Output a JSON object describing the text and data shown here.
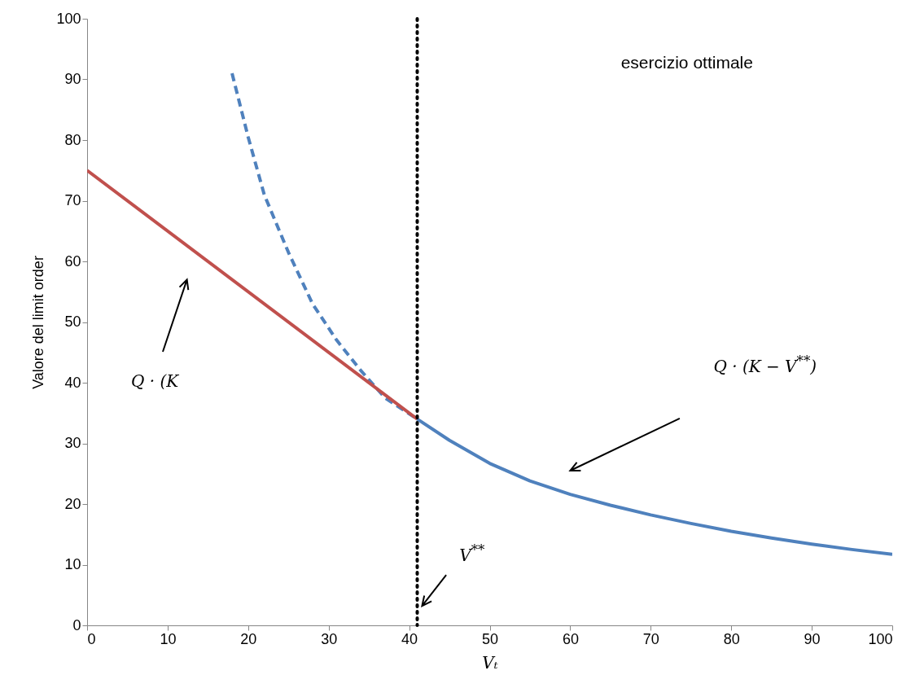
{
  "chart_data": {
    "type": "line",
    "xlabel": "Vₜ",
    "ylabel": "Valore del limit order",
    "xlim": [
      0,
      100
    ],
    "xticks": [
      0,
      10,
      20,
      30,
      40,
      50,
      60,
      70,
      80,
      90,
      100
    ],
    "ylim": [
      0,
      100
    ],
    "yticks": [
      0,
      10,
      20,
      30,
      40,
      50,
      60,
      70,
      80,
      90,
      100
    ],
    "grid": false,
    "series": [
      {
        "color": "#4f81bd",
        "line_style": "dashed",
        "x": [
          18,
          20,
          22,
          25,
          28,
          31,
          34,
          37,
          41
        ],
        "values": [
          91,
          80.5,
          71,
          61.5,
          53,
          47,
          42,
          37.5,
          34
        ]
      },
      {
        "color": "#c0504d",
        "line_style": "solid",
        "x": [
          0,
          41
        ],
        "values": [
          75,
          34
        ]
      },
      {
        "color": "#4f81bd",
        "line_style": "solid",
        "x": [
          41,
          45,
          50,
          55,
          60,
          65,
          70,
          75,
          80,
          85,
          90,
          95,
          100
        ],
        "values": [
          34,
          30.5,
          26.7,
          23.8,
          21.6,
          19.8,
          18.2,
          16.8,
          15.5,
          14.4,
          13.4,
          12.5,
          11.7
        ]
      }
    ],
    "ref_lines": [
      {
        "axis": "x",
        "value": 41,
        "color": "#000000",
        "line_style": "dotted"
      }
    ],
    "annotations": [
      "esercizio ottimale",
      "Q · (K",
      "Q · (K − V$^{**}$)",
      "V$^{**}$"
    ]
  }
}
